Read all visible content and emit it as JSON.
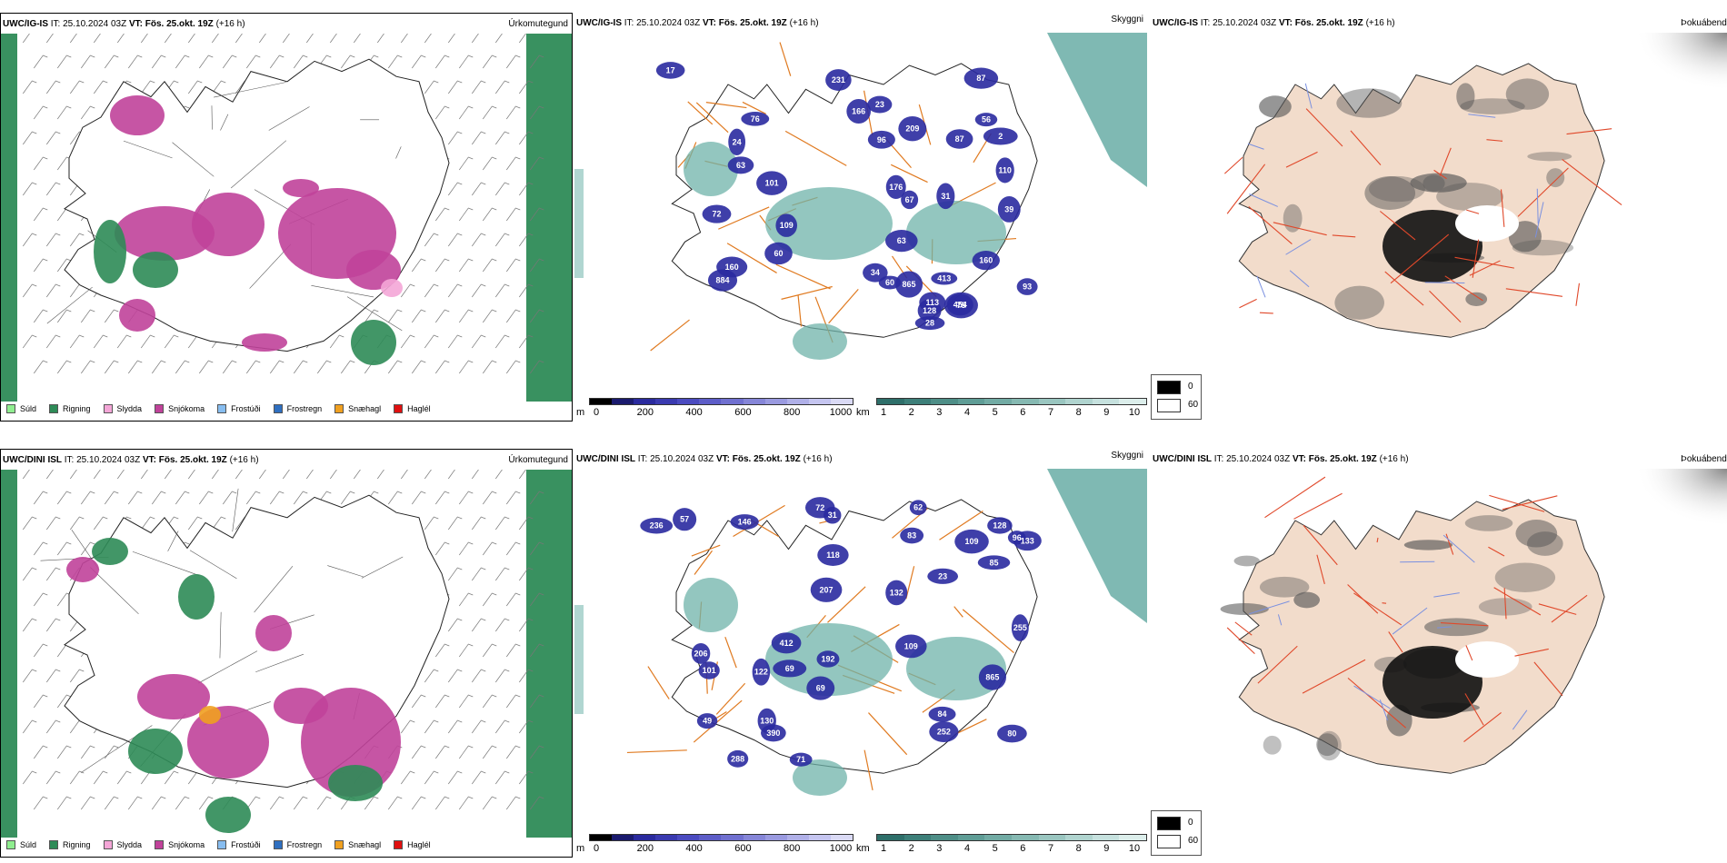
{
  "rows": [
    {
      "model": "UWC/IG-IS",
      "it_label": "IT:",
      "it_value": "25.10.2024 03Z",
      "vt_label": "VT:",
      "vt_value": "Fös. 25.okt. 19Z",
      "lead": "(+16 h)",
      "cloud_numbers": [
        "113",
        "96",
        "63",
        "76",
        "166",
        "72",
        "109",
        "87",
        "160",
        "101",
        "128",
        "209",
        "231",
        "176",
        "110",
        "160",
        "56",
        "39",
        "75",
        "31",
        "17",
        "60",
        "63",
        "23",
        "93",
        "87",
        "2",
        "24",
        "28",
        "60",
        "67",
        "34",
        "884",
        "865",
        "413",
        "454"
      ]
    },
    {
      "model": "UWC/DINI ISL",
      "it_label": "IT:",
      "it_value": "25.10.2024 03Z",
      "vt_label": "VT:",
      "vt_value": "Fös. 25.okt. 19Z",
      "lead": "(+16 h)",
      "cloud_numbers": [
        "71",
        "31",
        "132",
        "206",
        "128",
        "101",
        "130",
        "85",
        "133",
        "146",
        "84",
        "118",
        "122",
        "109",
        "96",
        "252",
        "192",
        "23",
        "236",
        "255",
        "288",
        "69",
        "83",
        "109",
        "49",
        "80",
        "207",
        "62",
        "57",
        "865",
        "412",
        "72",
        "390",
        "69"
      ]
    }
  ],
  "titles": {
    "precip": "Úrkomutegund",
    "ceiling": "Skyggni",
    "fog": "Þokuábendi"
  },
  "precip_legend": [
    {
      "label": "Súld",
      "color": "#90ee90"
    },
    {
      "label": "Rigning",
      "color": "#2e8b57"
    },
    {
      "label": "Slydda",
      "color": "#f4a6d7"
    },
    {
      "label": "Snjókoma",
      "color": "#c0429a"
    },
    {
      "label": "Frostúði",
      "color": "#87bdf0"
    },
    {
      "label": "Frostregn",
      "color": "#2f6fc0"
    },
    {
      "label": "Snæhagl",
      "color": "#f0a020"
    },
    {
      "label": "Haglél",
      "color": "#e01010"
    }
  ],
  "ceiling_colorbar": {
    "unit": "m",
    "ticks": [
      "0",
      "200",
      "400",
      "600",
      "800",
      "1000"
    ],
    "colors": [
      "#000000",
      "#1a1a6e",
      "#2a2a9e",
      "#3a3ab0",
      "#4b4bc0",
      "#5d5dc8",
      "#7070d0",
      "#8686d8",
      "#9a9ae0",
      "#b0b0e8",
      "#c5c5f0",
      "#dadaf5"
    ]
  },
  "visibility_colorbar": {
    "unit": "km",
    "ticks": [
      "1",
      "2",
      "3",
      "4",
      "5",
      "6",
      "7",
      "8",
      "9",
      "10"
    ],
    "colors": [
      "#2e6f6a",
      "#3d7f79",
      "#4e8e87",
      "#5f9d96",
      "#72aba4",
      "#86b9b2",
      "#9ac6c0",
      "#b0d4cf",
      "#c6e1de",
      "#dceeeb"
    ]
  },
  "fog_legend": [
    {
      "label": "0",
      "color": "#000000"
    },
    {
      "label": "60",
      "color": "#ffffff"
    }
  ]
}
